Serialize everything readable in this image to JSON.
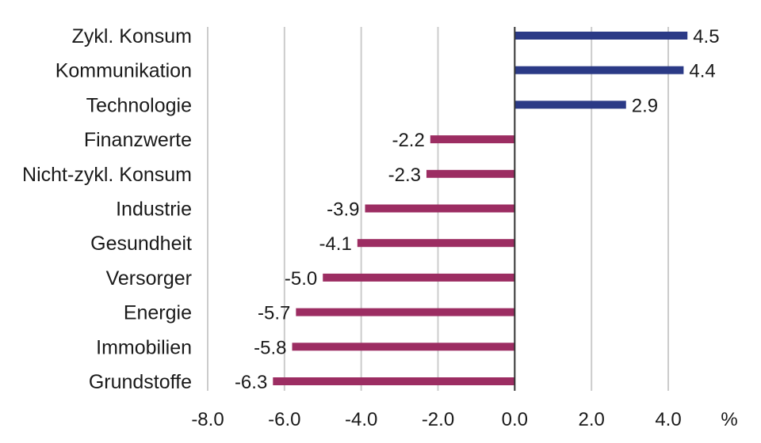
{
  "chart_data": {
    "type": "bar",
    "orientation": "horizontal",
    "categories": [
      "Zykl. Konsum",
      "Kommunikation",
      "Technologie",
      "Finanzwerte",
      "Nicht-zykl. Konsum",
      "Industrie",
      "Gesundheit",
      "Versorger",
      "Energie",
      "Immobilien",
      "Grundstoffe"
    ],
    "values": [
      4.5,
      4.4,
      2.9,
      -2.2,
      -2.3,
      -3.9,
      -4.1,
      -5.0,
      -5.7,
      -5.8,
      -6.3
    ],
    "value_labels": [
      "4.5",
      "4.4",
      "2.9",
      "-2.2",
      "-2.3",
      "-3.9",
      "-4.1",
      "-5.0",
      "-5.7",
      "-5.8",
      "-6.3"
    ],
    "xlim": [
      -8,
      4
    ],
    "xticks": [
      -8,
      -6,
      -4,
      -2,
      0,
      2,
      4
    ],
    "xtick_labels": [
      "-8.0",
      "-6.0",
      "-4.0",
      "-2.0",
      "0.0",
      "2.0",
      "4.0"
    ],
    "unit": "%",
    "grid": "vertical",
    "colors": {
      "positive": "#2b3a86",
      "negative": "#9c2d62",
      "grid": "#cccccc",
      "zero_line": "#333333"
    }
  }
}
